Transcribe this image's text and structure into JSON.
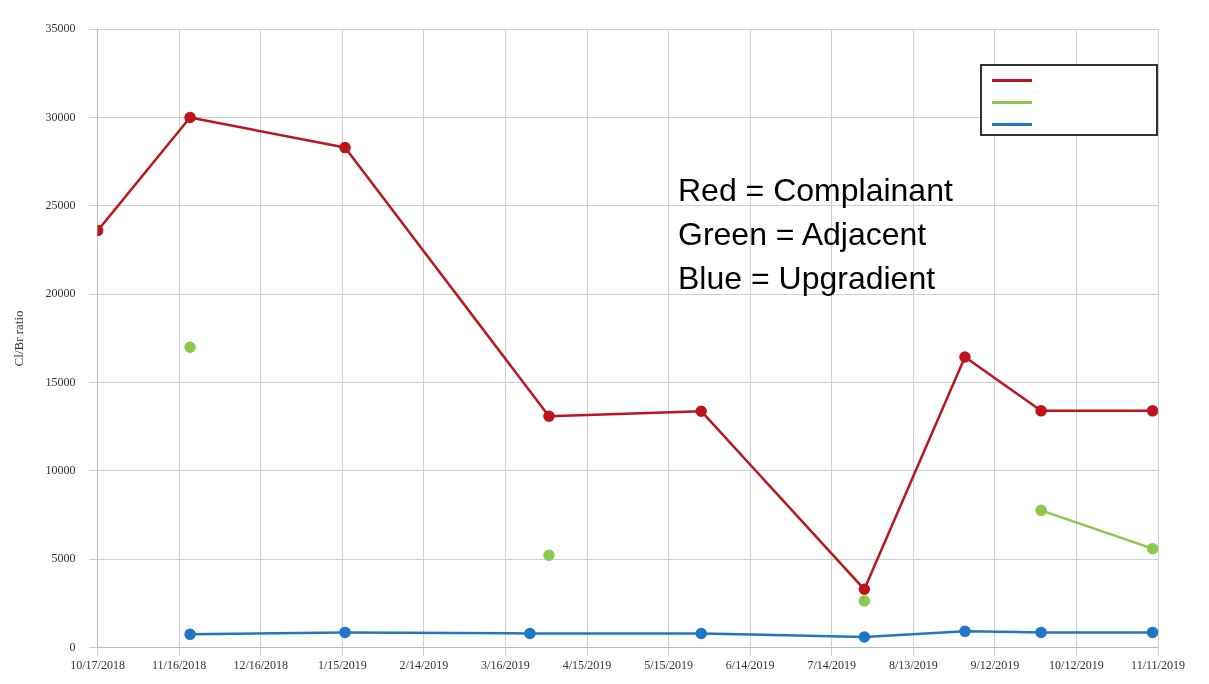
{
  "chart_data": {
    "type": "line",
    "ylabel": "Cl/Br ratio",
    "x": [
      "2018-10-17",
      "2018-11-20",
      "2019-01-16",
      "2019-04-01",
      "2019-05-27",
      "2019-07-26",
      "2019-09-01",
      "2019-09-29",
      "2019-11-09"
    ],
    "series": [
      {
        "color": "#c0141c",
        "values": [
          23600,
          30000,
          28300,
          13100,
          13380,
          3300,
          16450,
          13400,
          13400
        ]
      },
      {
        "color": "#8cc84b",
        "values": [
          null,
          17000,
          null,
          5230,
          null,
          2640,
          null,
          7770,
          5600
        ]
      },
      {
        "color": "#1f77c8",
        "x": [
          "2018-11-20",
          "2019-01-16",
          "2019-03-25",
          "2019-05-27",
          "2019-07-26",
          "2019-09-01",
          "2019-09-29",
          "2019-11-09"
        ],
        "values": [
          750,
          860,
          800,
          800,
          600,
          920,
          860,
          860
        ]
      }
    ],
    "xlim": [
      "2018-10-17",
      "2019-11-11"
    ],
    "xticks": [
      {
        "value": "2018-10-17",
        "label": "10/17/2018"
      },
      {
        "value": "2018-11-16",
        "label": "11/16/2018"
      },
      {
        "value": "2018-12-16",
        "label": "12/16/2018"
      },
      {
        "value": "2019-01-15",
        "label": "1/15/2019"
      },
      {
        "value": "2019-02-14",
        "label": "2/14/2019"
      },
      {
        "value": "2019-03-16",
        "label": "3/16/2019"
      },
      {
        "value": "2019-04-15",
        "label": "4/15/2019"
      },
      {
        "value": "2019-05-15",
        "label": "5/15/2019"
      },
      {
        "value": "2019-06-14",
        "label": "6/14/2019"
      },
      {
        "value": "2019-07-14",
        "label": "7/14/2019"
      },
      {
        "value": "2019-08-13",
        "label": "8/13/2019"
      },
      {
        "value": "2019-09-12",
        "label": "9/12/2019"
      },
      {
        "value": "2019-10-12",
        "label": "10/12/2019"
      },
      {
        "value": "2019-11-11",
        "label": "11/11/2019"
      }
    ],
    "ylim": [
      0,
      35000
    ],
    "yticks": [
      0,
      5000,
      10000,
      15000,
      20000,
      25000,
      30000,
      35000
    ],
    "grid": true,
    "marker": "circle",
    "line_style": "solid",
    "annotations": [
      "Red = Complainant",
      "Green = Adjacent",
      "Blue = Upgradient"
    ]
  }
}
